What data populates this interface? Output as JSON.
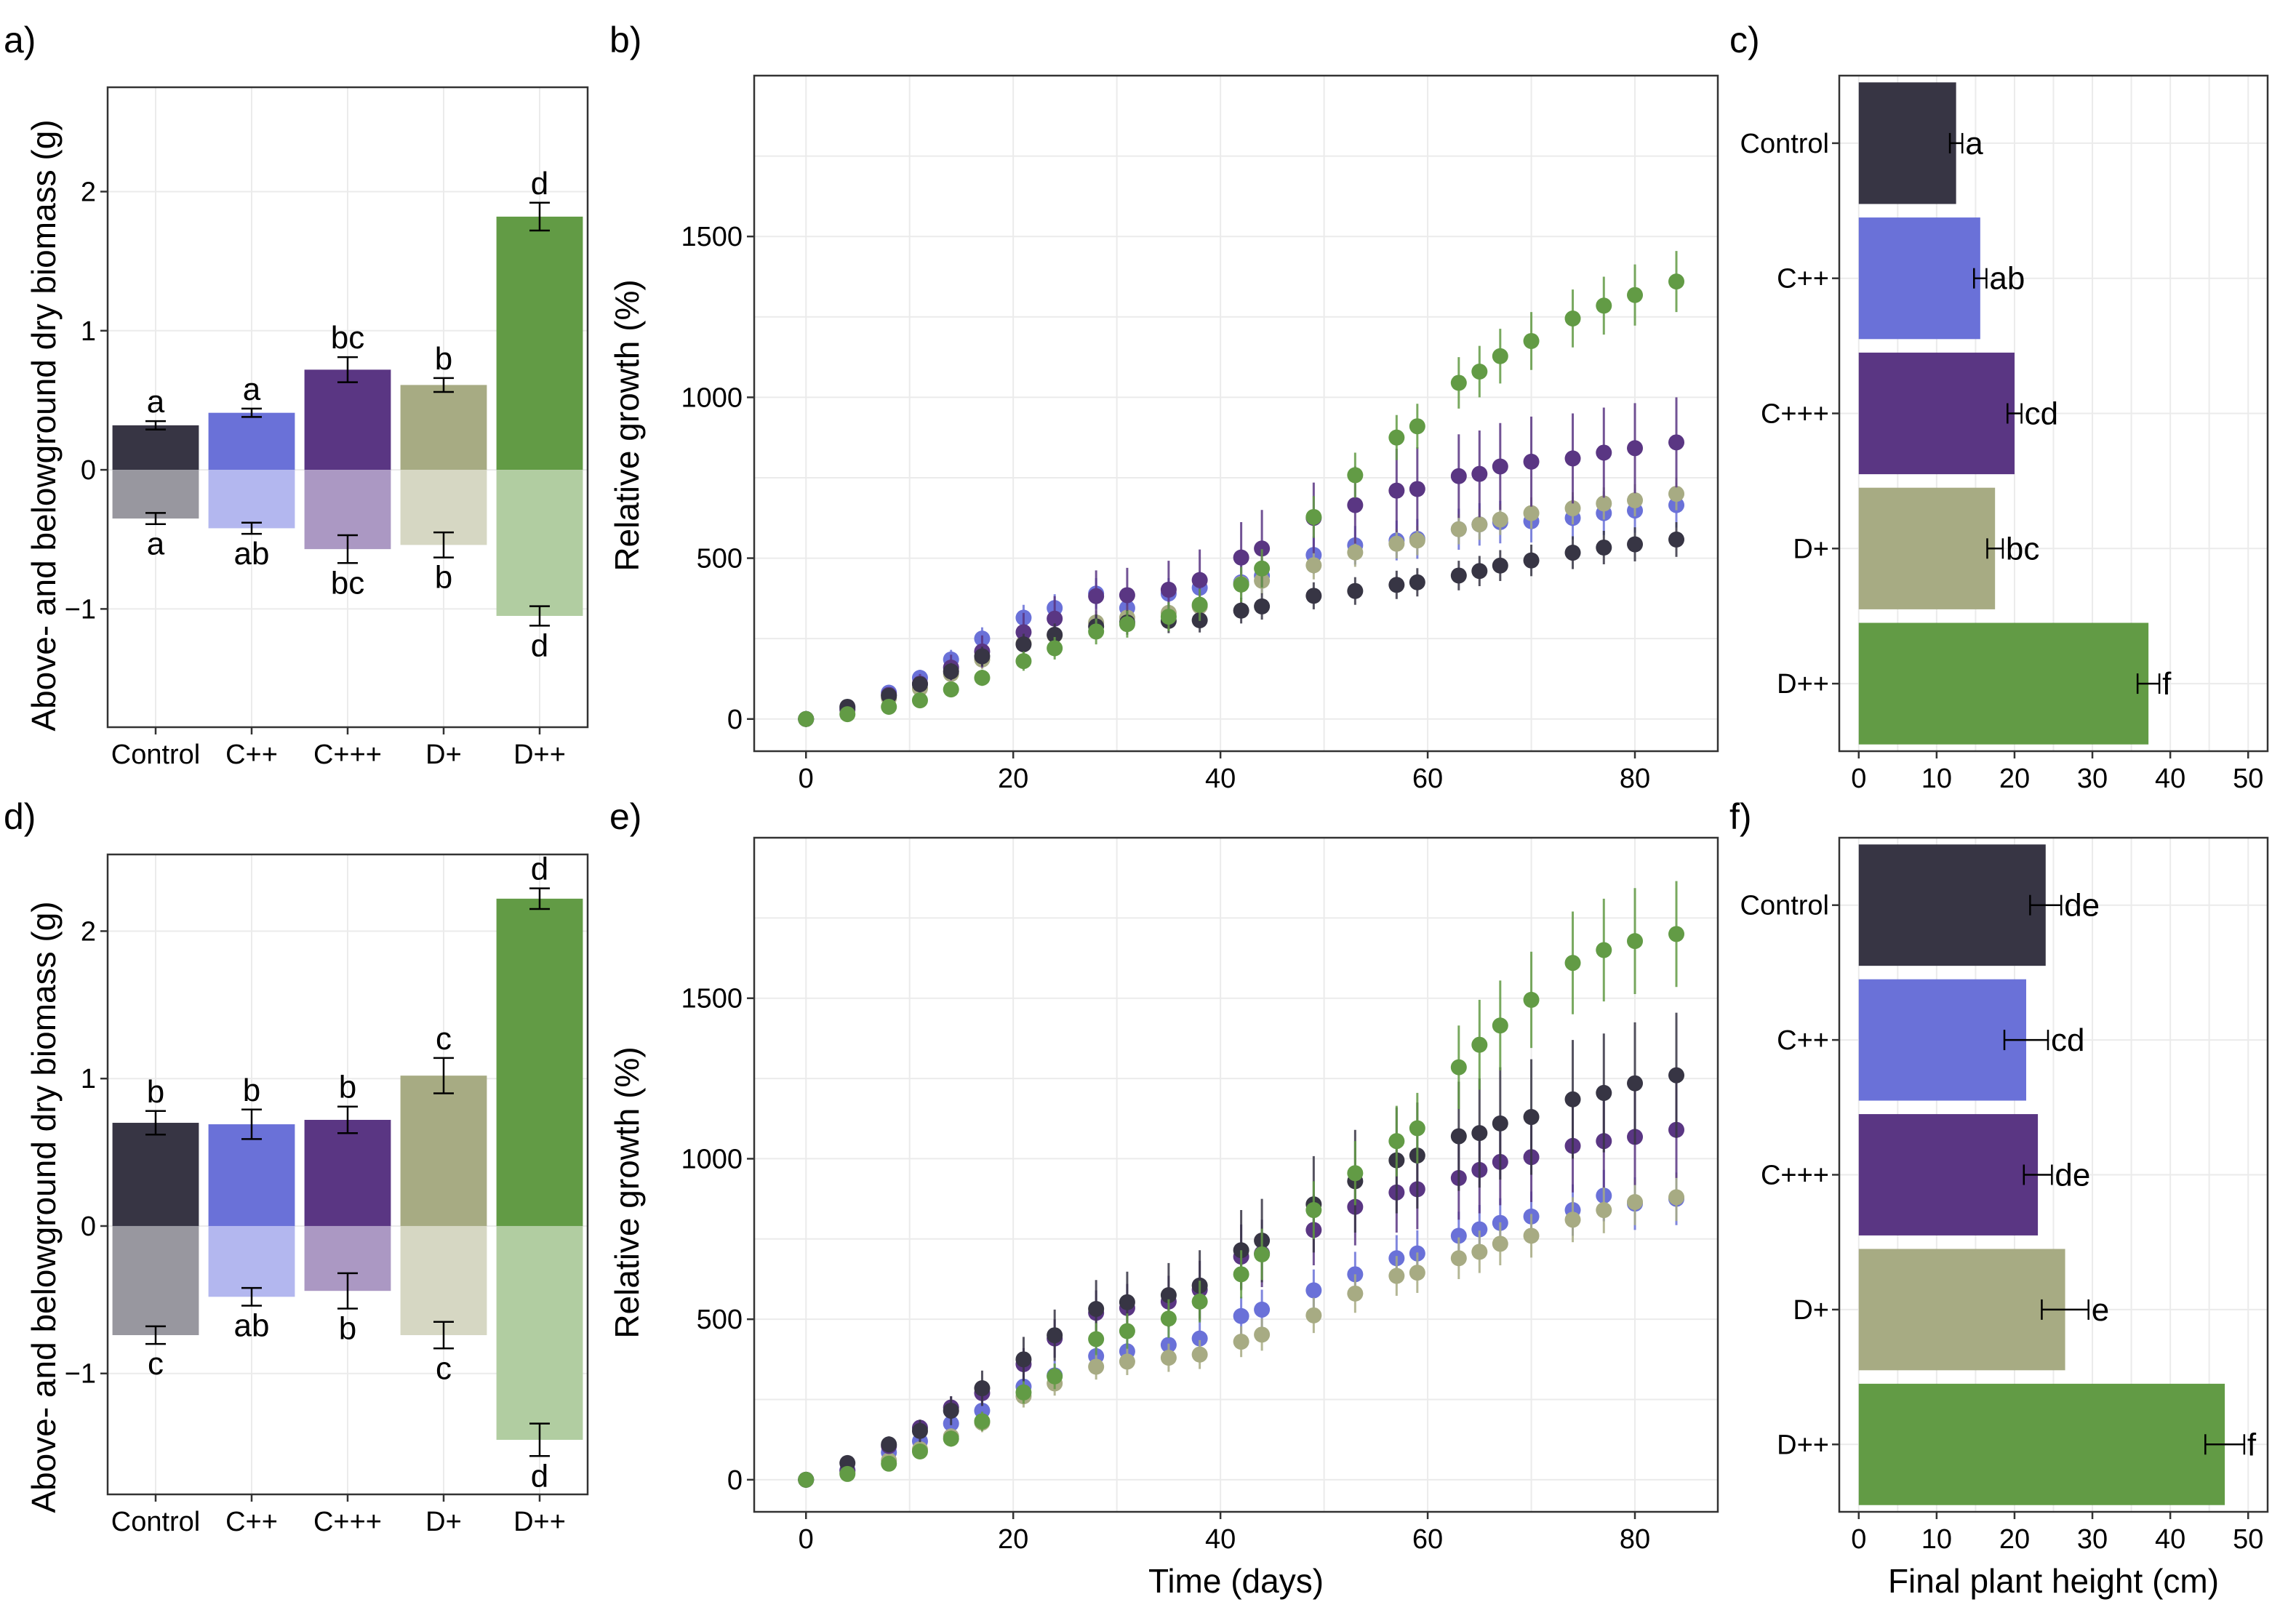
{
  "colors": {
    "Control": "#373544",
    "C++": "#6a71d8",
    "C+++": "#5a3683",
    "D+": "#a7ab83",
    "D++": "#629b45"
  },
  "colors_light": {
    "Control": "#98979f",
    "C++": "#b3b7ef",
    "C+++": "#ab98c3",
    "D+": "#d6d7c3",
    "D++": "#b1cda1"
  },
  "chart_data": [
    {
      "id": "a",
      "panel_label": "a)",
      "type": "bar",
      "ylabel": "Above- and belowground dry biomass (g)",
      "xlabel": "",
      "categories": [
        "Control",
        "C++",
        "C+++",
        "D+",
        "D++"
      ],
      "ylim": [
        -1.85,
        2.75
      ],
      "yticks": [
        -1,
        0,
        1,
        2
      ],
      "ytick_labels": [
        "−1",
        "0",
        "1",
        "2"
      ],
      "series": [
        {
          "name": "aboveground",
          "values": [
            0.32,
            0.41,
            0.72,
            0.61,
            1.82
          ],
          "errors": [
            0.03,
            0.03,
            0.09,
            0.05,
            0.1
          ],
          "letters": [
            "a",
            "a",
            "bc",
            "b",
            "d"
          ]
        },
        {
          "name": "belowground",
          "values": [
            -0.35,
            -0.42,
            -0.57,
            -0.54,
            -1.05
          ],
          "errors": [
            0.04,
            0.04,
            0.1,
            0.09,
            0.07
          ],
          "letters": [
            "a",
            "ab",
            "bc",
            "b",
            "d"
          ]
        }
      ]
    },
    {
      "id": "b",
      "panel_label": "b)",
      "type": "scatter",
      "ylabel": "Relative growth (%)",
      "xlabel": "",
      "xlim": [
        -5,
        88
      ],
      "ylim": [
        -100,
        2000
      ],
      "xticks": [
        0,
        20,
        40,
        60,
        80
      ],
      "yticks": [
        0,
        500,
        1000,
        1500
      ],
      "x": [
        0,
        4,
        8,
        11,
        14,
        17,
        21,
        24,
        28,
        31,
        35,
        38,
        42,
        44,
        49,
        53,
        57,
        59,
        63,
        65,
        67,
        70,
        74,
        77,
        80,
        84
      ],
      "series": [
        {
          "name": "Control",
          "values": [
            0,
            38,
            72,
            108,
            148,
            195,
            232,
            262,
            288,
            300,
            305,
            307,
            337,
            350,
            383,
            398,
            417,
            425,
            446,
            460,
            477,
            493,
            517,
            533,
            543,
            558
          ],
          "errors": [
            5,
            12,
            18,
            22,
            26,
            30,
            33,
            35,
            37,
            38,
            38,
            38,
            40,
            41,
            42,
            43,
            44,
            44,
            46,
            47,
            48,
            49,
            51,
            52,
            53,
            54
          ]
        },
        {
          "name": "C++",
          "values": [
            0,
            35,
            82,
            128,
            185,
            250,
            315,
            345,
            390,
            345,
            390,
            408,
            425,
            445,
            510,
            540,
            555,
            560,
            590,
            605,
            612,
            615,
            625,
            640,
            648,
            665
          ],
          "errors": [
            5,
            12,
            20,
            25,
            30,
            35,
            40,
            43,
            48,
            45,
            48,
            50,
            52,
            54,
            58,
            60,
            62,
            62,
            64,
            66,
            66,
            66,
            67,
            68,
            69,
            70
          ]
        },
        {
          "name": "C+++",
          "values": [
            0,
            30,
            75,
            110,
            160,
            210,
            270,
            312,
            382,
            385,
            402,
            432,
            502,
            530,
            625,
            665,
            710,
            715,
            755,
            762,
            785,
            800,
            810,
            828,
            842,
            860
          ],
          "errors": [
            5,
            12,
            20,
            30,
            40,
            50,
            60,
            70,
            80,
            85,
            90,
            95,
            110,
            120,
            110,
            120,
            130,
            130,
            130,
            135,
            135,
            140,
            140,
            140,
            140,
            140
          ]
        },
        {
          "name": "D+",
          "values": [
            0,
            28,
            65,
            95,
            140,
            185,
            235,
            260,
            300,
            315,
            330,
            350,
            420,
            430,
            478,
            518,
            545,
            555,
            590,
            605,
            620,
            640,
            655,
            670,
            680,
            700
          ],
          "errors": [
            5,
            12,
            18,
            22,
            26,
            30,
            33,
            35,
            37,
            38,
            38,
            40,
            42,
            42,
            44,
            45,
            46,
            46,
            47,
            48,
            48,
            49,
            50,
            50,
            50,
            51
          ]
        },
        {
          "name": "D++",
          "values": [
            0,
            15,
            38,
            58,
            92,
            128,
            180,
            220,
            272,
            295,
            318,
            355,
            418,
            468,
            628,
            758,
            875,
            910,
            1045,
            1080,
            1128,
            1175,
            1245,
            1285,
            1318,
            1360
          ],
          "errors": [
            5,
            8,
            12,
            15,
            20,
            25,
            30,
            35,
            40,
            42,
            45,
            50,
            55,
            60,
            65,
            70,
            70,
            70,
            80,
            80,
            85,
            90,
            90,
            90,
            95,
            95
          ]
        }
      ]
    },
    {
      "id": "c",
      "panel_label": "c)",
      "type": "bar",
      "orientation": "horizontal",
      "xlabel": "",
      "ylabel": "",
      "categories": [
        "Control",
        "C++",
        "C+++",
        "D+",
        "D++"
      ],
      "xlim": [
        -2.5,
        52.5
      ],
      "xticks": [
        0,
        10,
        20,
        30,
        40,
        50
      ],
      "values": [
        12.5,
        15.6,
        20.0,
        17.5,
        37.2
      ],
      "errors": [
        0.8,
        0.8,
        0.9,
        1.0,
        1.4
      ],
      "letters": [
        "a",
        "ab",
        "cd",
        "bc",
        "f"
      ]
    },
    {
      "id": "d",
      "panel_label": "d)",
      "type": "bar",
      "ylabel": "Above- and belowground dry biomass (g)",
      "xlabel": "",
      "categories": [
        "Control",
        "C++",
        "C+++",
        "D+",
        "D++"
      ],
      "ylim": [
        -1.82,
        2.52
      ],
      "yticks": [
        -1,
        0,
        1,
        2
      ],
      "ytick_labels": [
        "−1",
        "0",
        "1",
        "2"
      ],
      "series": [
        {
          "name": "aboveground",
          "values": [
            0.7,
            0.69,
            0.72,
            1.02,
            2.22
          ],
          "errors": [
            0.08,
            0.1,
            0.09,
            0.12,
            0.07
          ],
          "letters": [
            "b",
            "b",
            "b",
            "c",
            "d"
          ]
        },
        {
          "name": "belowground",
          "values": [
            -0.74,
            -0.48,
            -0.44,
            -0.74,
            -1.45
          ],
          "errors": [
            0.06,
            0.06,
            0.12,
            0.09,
            0.11
          ],
          "letters": [
            "c",
            "ab",
            "b",
            "c",
            "d"
          ]
        }
      ]
    },
    {
      "id": "e",
      "panel_label": "e)",
      "type": "scatter",
      "ylabel": "Relative growth (%)",
      "xlabel": "Time (days)",
      "xlim": [
        -5,
        88
      ],
      "ylim": [
        -100,
        2000
      ],
      "xticks": [
        0,
        20,
        40,
        60,
        80
      ],
      "yticks": [
        0,
        500,
        1000,
        1500
      ],
      "x": [
        0,
        4,
        8,
        11,
        14,
        17,
        21,
        24,
        28,
        31,
        35,
        38,
        42,
        44,
        49,
        53,
        57,
        59,
        63,
        65,
        67,
        70,
        74,
        77,
        80,
        84
      ],
      "series": [
        {
          "name": "Control",
          "values": [
            0,
            52,
            110,
            152,
            215,
            285,
            375,
            450,
            532,
            553,
            575,
            605,
            715,
            745,
            858,
            930,
            995,
            1010,
            1070,
            1080,
            1110,
            1130,
            1185,
            1205,
            1235,
            1260
          ],
          "errors": [
            5,
            15,
            25,
            35,
            45,
            55,
            70,
            80,
            90,
            95,
            100,
            110,
            125,
            130,
            150,
            160,
            165,
            165,
            170,
            170,
            175,
            180,
            185,
            185,
            190,
            195
          ]
        },
        {
          "name": "C++",
          "values": [
            0,
            30,
            85,
            120,
            175,
            215,
            290,
            325,
            385,
            400,
            420,
            440,
            510,
            530,
            590,
            640,
            690,
            705,
            760,
            780,
            800,
            820,
            840,
            885,
            860,
            875
          ],
          "errors": [
            5,
            12,
            20,
            25,
            30,
            35,
            40,
            45,
            50,
            52,
            55,
            57,
            60,
            62,
            65,
            70,
            72,
            72,
            75,
            76,
            77,
            78,
            80,
            80,
            82,
            82
          ]
        },
        {
          "name": "C+++",
          "values": [
            0,
            28,
            105,
            162,
            225,
            270,
            360,
            440,
            520,
            535,
            555,
            592,
            695,
            705,
            778,
            850,
            895,
            905,
            940,
            965,
            990,
            1005,
            1040,
            1055,
            1068,
            1090
          ],
          "errors": [
            5,
            12,
            20,
            25,
            35,
            40,
            50,
            60,
            70,
            75,
            80,
            90,
            100,
            105,
            110,
            120,
            125,
            125,
            130,
            135,
            135,
            140,
            145,
            145,
            150,
            150
          ]
        },
        {
          "name": "D+",
          "values": [
            0,
            22,
            60,
            95,
            135,
            178,
            260,
            300,
            352,
            368,
            380,
            390,
            430,
            452,
            512,
            580,
            635,
            645,
            690,
            710,
            735,
            760,
            810,
            840,
            865,
            880
          ],
          "errors": [
            5,
            10,
            15,
            20,
            25,
            30,
            35,
            38,
            40,
            42,
            44,
            45,
            48,
            50,
            55,
            60,
            62,
            63,
            65,
            66,
            67,
            68,
            70,
            72,
            72,
            74
          ]
        },
        {
          "name": "D++",
          "values": [
            0,
            18,
            50,
            88,
            128,
            182,
            272,
            322,
            438,
            463,
            502,
            555,
            640,
            702,
            840,
            955,
            1055,
            1095,
            1285,
            1355,
            1415,
            1495,
            1610,
            1650,
            1678,
            1700
          ],
          "errors": [
            5,
            10,
            15,
            20,
            25,
            30,
            35,
            40,
            50,
            55,
            60,
            65,
            75,
            80,
            90,
            100,
            110,
            110,
            130,
            140,
            140,
            150,
            160,
            160,
            165,
            165
          ]
        }
      ]
    },
    {
      "id": "f",
      "panel_label": "f)",
      "type": "bar",
      "orientation": "horizontal",
      "xlabel": "Final plant height (cm)",
      "ylabel": "",
      "categories": [
        "Control",
        "C++",
        "C+++",
        "D+",
        "D++"
      ],
      "xlim": [
        -2.5,
        52.5
      ],
      "xticks": [
        0,
        10,
        20,
        30,
        40,
        50
      ],
      "values": [
        24.0,
        21.5,
        23.0,
        26.5,
        47.0
      ],
      "errors": [
        2.0,
        2.8,
        1.8,
        3.0,
        2.5
      ],
      "letters": [
        "de",
        "cd",
        "de",
        "e",
        "f"
      ]
    }
  ]
}
